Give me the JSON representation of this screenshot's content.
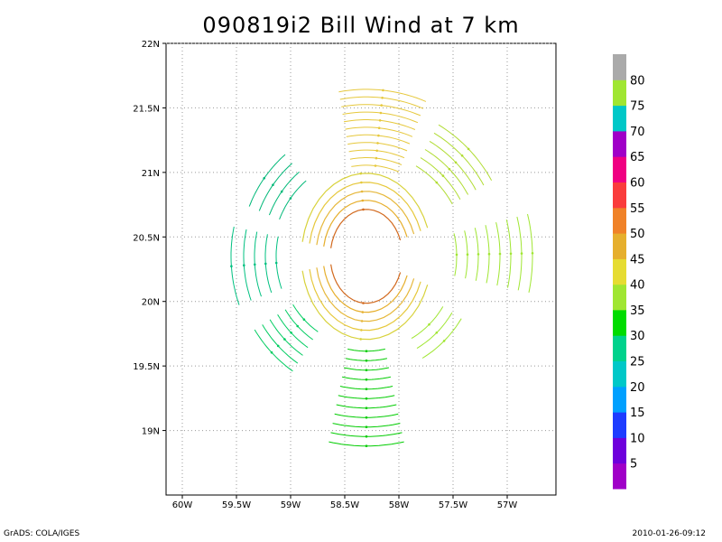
{
  "chart_data": {
    "type": "vector-field",
    "title": "090819i2 Bill Wind at 7 km",
    "x_ticks": [
      "60W",
      "59.5W",
      "59W",
      "58.5W",
      "58W",
      "57.5W",
      "57W"
    ],
    "x_tick_values": [
      -60,
      -59.5,
      -59,
      -58.5,
      -58,
      -57.5,
      -57
    ],
    "y_ticks": [
      "19N",
      "19.5N",
      "20N",
      "20.5N",
      "21N",
      "21.5N",
      "22N"
    ],
    "y_tick_values": [
      19,
      19.5,
      20,
      20.5,
      21,
      21.5,
      22
    ],
    "xlim": [
      -60.15,
      -56.55
    ],
    "ylim": [
      18.5,
      22
    ],
    "grid": true,
    "storm_center": {
      "lon": -58.3,
      "lat": 20.35
    },
    "colorbar": {
      "labels": [
        "5",
        "10",
        "15",
        "20",
        "25",
        "30",
        "35",
        "40",
        "45",
        "50",
        "55",
        "60",
        "65",
        "70",
        "75",
        "80"
      ],
      "colors": [
        "#a000c8",
        "#6e00dc",
        "#1e3cff",
        "#00a0ff",
        "#00c8c8",
        "#00d28c",
        "#00dc00",
        "#a0e632",
        "#e6dc32",
        "#e6af2d",
        "#f08228",
        "#fa3c3c",
        "#f00082",
        "#a000c8",
        "#00c8c8",
        "#a0e632",
        "#aaaaaa"
      ]
    },
    "bands": [
      {
        "name": "south",
        "speed_kt": "25-30"
      },
      {
        "name": "southeast",
        "speed_kt": "35-40"
      },
      {
        "name": "east",
        "speed_kt": "40-45"
      },
      {
        "name": "northeast",
        "speed_kt": "40-45"
      },
      {
        "name": "north",
        "speed_kt": "35-45"
      },
      {
        "name": "northwest",
        "speed_kt": "30-35"
      },
      {
        "name": "west",
        "speed_kt": "25-35"
      },
      {
        "name": "inner-core",
        "speed_kt": "45-55"
      }
    ]
  },
  "footer": {
    "left": "GrADS: COLA/IGES",
    "right": "2010-01-26-09:12"
  }
}
